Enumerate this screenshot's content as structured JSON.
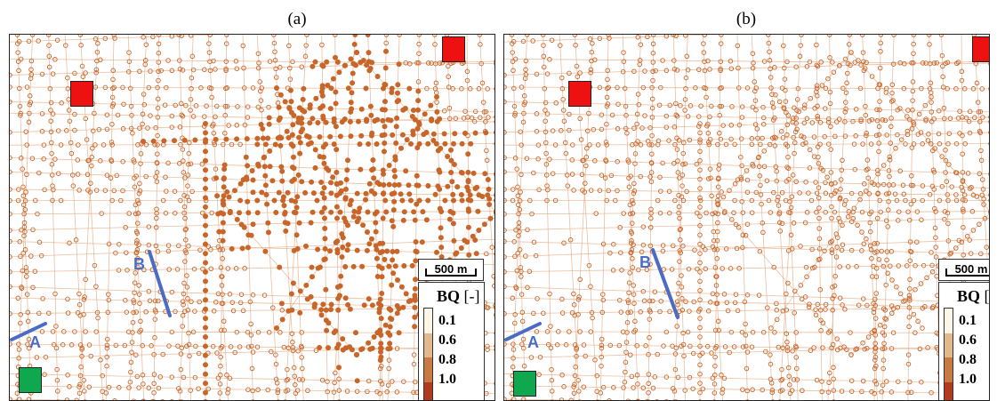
{
  "panels": [
    {
      "caption": "(a)"
    },
    {
      "caption": "(b)"
    }
  ],
  "scalebar": {
    "label": "500 m"
  },
  "legend": {
    "title": "BQ",
    "unit": "[-]",
    "ticks": [
      "0.1",
      "0.6",
      "0.8",
      "1.0"
    ],
    "colors": [
      "#fbf6e6",
      "#e2b88d",
      "#c97a42",
      "#b23a1e"
    ]
  },
  "line_labels": {
    "a": "A",
    "b": "B"
  },
  "colors": {
    "network": "#c8662a",
    "network_light": "#e2a47a",
    "origin_marker": "#ee1111",
    "destination_marker": "#10a84e",
    "cross_section_line": "#4a6cc4"
  }
}
